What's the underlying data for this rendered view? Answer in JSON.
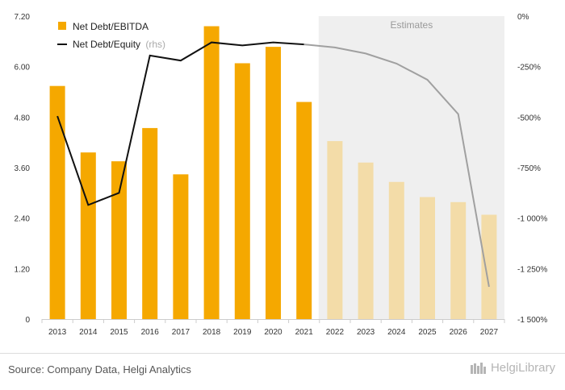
{
  "chart_data": {
    "type": "bar",
    "categories": [
      "2013",
      "2014",
      "2015",
      "2016",
      "2017",
      "2018",
      "2019",
      "2020",
      "2021",
      "2022",
      "2023",
      "2024",
      "2025",
      "2026",
      "2027"
    ],
    "series": [
      {
        "name": "Net Debt/EBITDA",
        "axis": "left",
        "values": [
          5.54,
          3.96,
          3.75,
          4.54,
          3.44,
          6.96,
          6.08,
          6.47,
          5.16,
          4.23,
          3.72,
          3.26,
          2.9,
          2.78,
          2.48
        ],
        "estimate_from_index": 9,
        "color": "#f5a800",
        "estimate_color": "#f3dca8"
      },
      {
        "name": "Net Debt/Equity",
        "name_suffix": "(rhs)",
        "axis": "right",
        "unit": "%",
        "values": [
          -495,
          -935,
          -875,
          -195,
          -220,
          -130,
          -145,
          -130,
          -140,
          -155,
          -185,
          -235,
          -315,
          -485,
          -1340
        ],
        "estimate_from_index": 9,
        "color": "#111111",
        "estimate_color": "#a0a0a0"
      }
    ],
    "y_left": {
      "min": 0,
      "max": 7.2,
      "ticks": [
        0,
        1.2,
        2.4,
        3.6,
        4.8,
        6.0,
        7.2
      ],
      "tick_labels": [
        "0",
        "1.20",
        "2.40",
        "3.60",
        "4.80",
        "6.00",
        "7.20"
      ]
    },
    "y_right": {
      "min": -1500,
      "max": 0,
      "ticks": [
        0,
        -250,
        -500,
        -750,
        -1000,
        -1250,
        -1500
      ],
      "tick_labels": [
        "0%",
        "-250%",
        "-500%",
        "-750%",
        "-1 000%",
        "-1 250%",
        "-1 500%"
      ]
    },
    "estimates_label": "Estimates",
    "legend_position": "top-left",
    "grid": false
  },
  "footer": {
    "source": "Source: Company Data, Helgi Analytics",
    "brand": "HelgiLibrary",
    "brand_color": "#b5b5b5"
  }
}
